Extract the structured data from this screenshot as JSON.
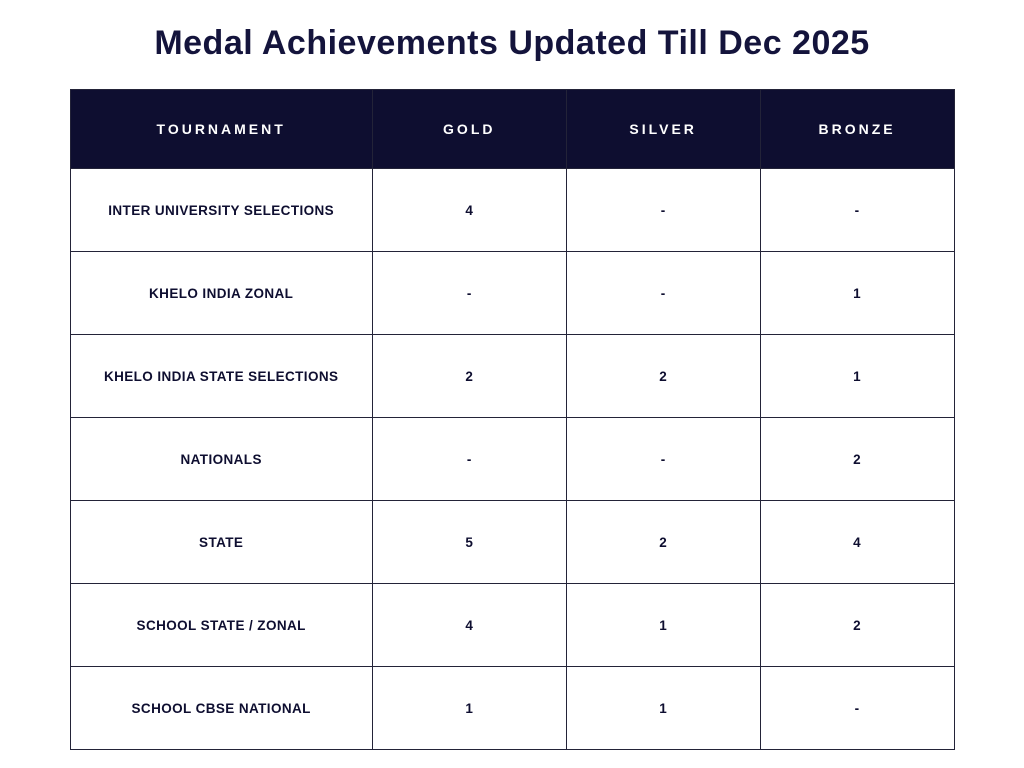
{
  "title": "Medal Achievements Updated Till Dec 2025",
  "colors": {
    "header_bg": "#0e0e30",
    "title_text": "#14143c",
    "border": "#232338",
    "body_bg": "#ffffff"
  },
  "chart_data": {
    "type": "table",
    "title": "Medal Achievements Updated Till Dec 2025",
    "columns": [
      "TOURNAMENT",
      "GOLD",
      "SILVER",
      "BRONZE"
    ],
    "rows": [
      [
        "INTER UNIVERSITY SELECTIONS",
        "4",
        "-",
        "-"
      ],
      [
        "KHELO INDIA ZONAL",
        "-",
        "-",
        "1"
      ],
      [
        "KHELO INDIA STATE SELECTIONS",
        "2",
        "2",
        "1"
      ],
      [
        "NATIONALS",
        "-",
        "-",
        "2"
      ],
      [
        "STATE",
        "5",
        "2",
        "4"
      ],
      [
        "SCHOOL STATE / ZONAL",
        "4",
        "1",
        "2"
      ],
      [
        "SCHOOL CBSE NATIONAL",
        "1",
        "1",
        "-"
      ]
    ]
  }
}
